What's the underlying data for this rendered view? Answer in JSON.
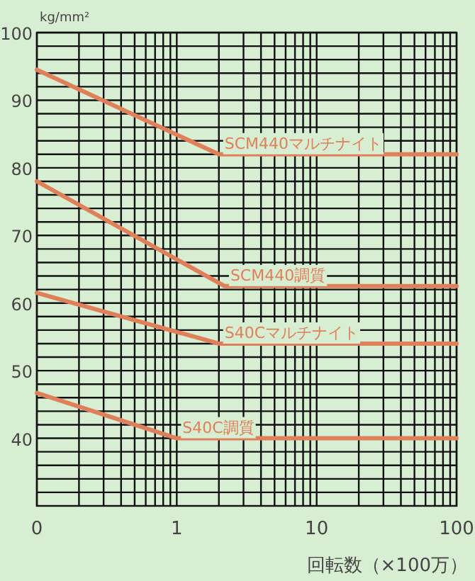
{
  "chart_data": {
    "type": "line",
    "ylabel": "kg/mm²",
    "xlabel": "回転数（×100万）",
    "log": "x",
    "grid": true,
    "legend": false,
    "marker": "none",
    "line_style": "solid",
    "xlim": [
      0.1,
      100
    ],
    "ylim": [
      30,
      100
    ],
    "xticks": [
      {
        "value": 0.1,
        "label": "0"
      },
      {
        "value": 0.2,
        "label": null
      },
      {
        "value": 0.3,
        "label": null
      },
      {
        "value": 0.4,
        "label": null
      },
      {
        "value": 0.5,
        "label": null
      },
      {
        "value": 0.6,
        "label": null
      },
      {
        "value": 0.7,
        "label": null
      },
      {
        "value": 0.8,
        "label": null
      },
      {
        "value": 0.9,
        "label": null
      },
      1,
      {
        "value": 2,
        "label": null
      },
      {
        "value": 3,
        "label": null
      },
      {
        "value": 4,
        "label": null
      },
      {
        "value": 5,
        "label": null
      },
      {
        "value": 6,
        "label": null
      },
      {
        "value": 7,
        "label": null
      },
      {
        "value": 8,
        "label": null
      },
      {
        "value": 9,
        "label": null
      },
      10,
      {
        "value": 20,
        "label": null
      },
      {
        "value": 30,
        "label": null
      },
      {
        "value": 40,
        "label": null
      },
      {
        "value": 50,
        "label": null
      },
      {
        "value": 60,
        "label": null
      },
      {
        "value": 70,
        "label": null
      },
      {
        "value": 80,
        "label": null
      },
      {
        "value": 90,
        "label": null
      },
      100
    ],
    "yticks": [
      {
        "value": 32,
        "label": null
      },
      {
        "value": 34,
        "label": null
      },
      {
        "value": 36,
        "label": null
      },
      {
        "value": 38,
        "label": null
      },
      40,
      {
        "value": 42,
        "label": null
      },
      {
        "value": 44,
        "label": null
      },
      {
        "value": 46,
        "label": null
      },
      {
        "value": 48,
        "label": null
      },
      50,
      {
        "value": 52,
        "label": null
      },
      {
        "value": 54,
        "label": null
      },
      {
        "value": 56,
        "label": null
      },
      {
        "value": 58,
        "label": null
      },
      60,
      {
        "value": 62,
        "label": null
      },
      {
        "value": 64,
        "label": null
      },
      {
        "value": 66,
        "label": null
      },
      {
        "value": 68,
        "label": null
      },
      70,
      {
        "value": 72,
        "label": null
      },
      {
        "value": 74,
        "label": null
      },
      {
        "value": 76,
        "label": null
      },
      {
        "value": 78,
        "label": null
      },
      80,
      {
        "value": 82,
        "label": null
      },
      {
        "value": 84,
        "label": null
      },
      {
        "value": 86,
        "label": null
      },
      {
        "value": 88,
        "label": null
      },
      90,
      {
        "value": 92,
        "label": null
      },
      {
        "value": 94,
        "label": null
      },
      {
        "value": 96,
        "label": null
      },
      {
        "value": 98,
        "label": null
      },
      100
    ],
    "series": [
      {
        "name": "SCM440マルチナイト",
        "color": "#e0805a",
        "x": [
          0.1,
          2,
          100
        ],
        "values": [
          94.5,
          82,
          82
        ]
      },
      {
        "name": "SCM440調質",
        "color": "#e0805a",
        "x": [
          0.1,
          2.2,
          100
        ],
        "values": [
          78,
          62.5,
          62.5
        ]
      },
      {
        "name": "S40Cマルチナイト",
        "color": "#e0805a",
        "x": [
          0.1,
          2,
          100
        ],
        "values": [
          61.5,
          54,
          54
        ]
      },
      {
        "name": "S40C調質",
        "color": "#e0805a",
        "x": [
          0.1,
          1,
          100
        ],
        "values": [
          46.7,
          40,
          40
        ]
      }
    ]
  }
}
